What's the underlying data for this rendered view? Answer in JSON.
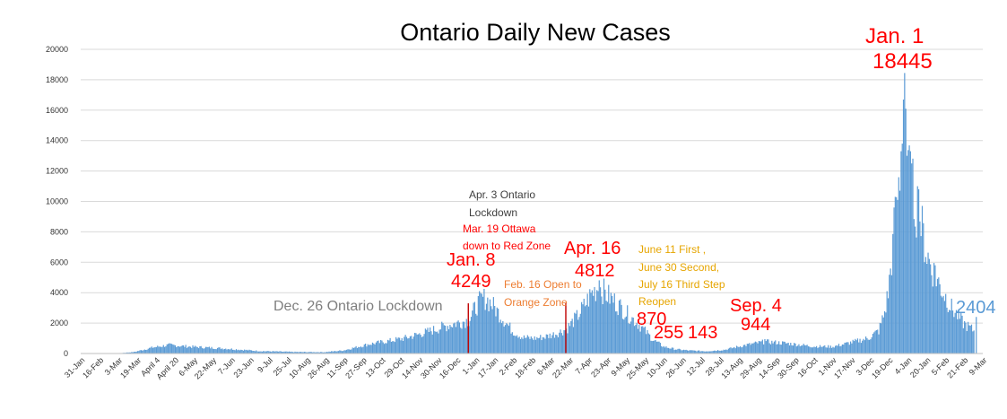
{
  "chart_data": {
    "type": "bar",
    "title": "Ontario Daily New Cases",
    "xlabel": "",
    "ylabel": "",
    "ylim": [
      0,
      20000
    ],
    "yticks": [
      0,
      2000,
      4000,
      6000,
      8000,
      10000,
      12000,
      14000,
      16000,
      18000,
      20000
    ],
    "grid": true,
    "legend": "none",
    "bar_color": "#5b9bd5",
    "start_date": "31-Jan",
    "x_tick_labels": [
      "31-Jan",
      "16-Feb",
      "3-Mar",
      "19-Mar",
      "April 4",
      "April 20",
      "6-May",
      "22-May",
      "7-Jun",
      "23-Jun",
      "9-Jul",
      "25-Jul",
      "10-Aug",
      "26-Aug",
      "11-Sep",
      "27-Sep",
      "13-Oct",
      "29-Oct",
      "14-Nov",
      "30-Nov",
      "16-Dec",
      "1-Jan",
      "17-Jan",
      "2-Feb",
      "18-Feb",
      "6-Mar",
      "22-Mar",
      "7-Apr",
      "23-Apr",
      "9-May",
      "25-May",
      "10-Jun",
      "26-Jun",
      "12-Jul",
      "28-Jul",
      "13-Aug",
      "29-Aug",
      "14-Sep",
      "30-Sep",
      "16-Oct",
      "1-Nov",
      "17-Nov",
      "3-Dec",
      "19-Dec",
      "4-Jan",
      "20-Jan",
      "5-Feb",
      "21-Feb",
      "9-Mar"
    ],
    "keyframes": [
      [
        "31-Jan",
        0
      ],
      [
        "29-Feb",
        0
      ],
      [
        "16-Mar",
        100
      ],
      [
        "1-Apr",
        400
      ],
      [
        "15-Apr",
        560
      ],
      [
        "1-May",
        460
      ],
      [
        "1-Jun",
        330
      ],
      [
        "1-Jul",
        160
      ],
      [
        "1-Aug",
        100
      ],
      [
        "25-Aug",
        90
      ],
      [
        "10-Sep",
        200
      ],
      [
        "1-Oct",
        600
      ],
      [
        "20-Oct",
        840
      ],
      [
        "1-Nov",
        1000
      ],
      [
        "20-Nov",
        1400
      ],
      [
        "10-Dec",
        1900
      ],
      [
        "26-Dec",
        2200
      ],
      [
        "2-Jan",
        3200
      ],
      [
        "8-Jan",
        3700
      ],
      [
        "14-Jan",
        3300
      ],
      [
        "21-Jan",
        2600
      ],
      [
        "1-Feb",
        1500
      ],
      [
        "10-Feb",
        1050
      ],
      [
        "20-Feb",
        1000
      ],
      [
        "1-Mar",
        1100
      ],
      [
        "10-Mar",
        1300
      ],
      [
        "19-Mar",
        1600
      ],
      [
        "28-Mar",
        2400
      ],
      [
        "3-Apr",
        3100
      ],
      [
        "10-Apr",
        4000
      ],
      [
        "16-Apr",
        4400
      ],
      [
        "22-Apr",
        3900
      ],
      [
        "1-May",
        3300
      ],
      [
        "10-May",
        2600
      ],
      [
        "20-May",
        1900
      ],
      [
        "1-Jun",
        900
      ],
      [
        "10-Jun",
        450
      ],
      [
        "20-Jun",
        280
      ],
      [
        "1-Jul",
        200
      ],
      [
        "16-Jul",
        150
      ],
      [
        "1-Aug",
        250
      ],
      [
        "15-Aug",
        500
      ],
      [
        "4-Sep",
        780
      ],
      [
        "20-Sep",
        690
      ],
      [
        "1-Oct",
        600
      ],
      [
        "15-Oct",
        470
      ],
      [
        "1-Nov",
        450
      ],
      [
        "15-Nov",
        700
      ],
      [
        "1-Dec",
        1000
      ],
      [
        "10-Dec",
        1500
      ],
      [
        "15-Dec",
        2700
      ],
      [
        "18-Dec",
        4000
      ],
      [
        "22-Dec",
        7000
      ],
      [
        "25-Dec",
        9000
      ],
      [
        "28-Dec",
        12000
      ],
      [
        "1-Jan",
        14000
      ],
      [
        "5-Jan",
        11500
      ],
      [
        "10-Jan",
        10000
      ],
      [
        "15-Jan",
        8500
      ],
      [
        "20-Jan",
        6500
      ],
      [
        "25-Jan",
        5500
      ],
      [
        "1-Feb",
        4300
      ],
      [
        "10-Feb",
        3000
      ],
      [
        "20-Feb",
        2000
      ],
      [
        "1-Mar",
        1500
      ]
    ],
    "spikes": [
      [
        "8-Jan",
        4249
      ],
      [
        "16-Apr",
        4812
      ],
      [
        "4-Sep",
        944
      ],
      [
        "23-Dec",
        9600
      ],
      [
        "24-Dec",
        10300
      ],
      [
        "26-Dec",
        10100
      ],
      [
        "29-Dec",
        13300
      ],
      [
        "30-Dec",
        13800
      ],
      [
        "31-Dec",
        16700
      ],
      [
        "1-Jan",
        18445
      ],
      [
        "2-Jan",
        16100
      ],
      [
        "3-Jan",
        13000
      ],
      [
        "6-Jan",
        13300
      ],
      [
        "12-Jan",
        11000
      ],
      [
        "13-Jan",
        10800
      ],
      [
        "27-Jan",
        5800
      ],
      [
        "3-Mar",
        2404
      ]
    ],
    "event_lines": [
      {
        "date": "26-Dec",
        "color": "#c00000"
      },
      {
        "date": "19-Mar",
        "color": "#c00000"
      }
    ],
    "annotations": [
      {
        "id": "ann-jan8-date",
        "text": "Jan. 8",
        "color": "#ff0000"
      },
      {
        "id": "ann-jan8-value",
        "text": "4249",
        "color": "#ff0000"
      },
      {
        "id": "ann-dec26",
        "text": "Dec. 26 Ontario Lockdown",
        "color": "#7f7f7f"
      },
      {
        "id": "ann-apr3-line1",
        "text": "Apr. 3 Ontario",
        "color": "#404040"
      },
      {
        "id": "ann-apr3-line2",
        "text": "Lockdown",
        "color": "#404040"
      },
      {
        "id": "ann-mar19-line1",
        "text": "Mar. 19 Ottawa",
        "color": "#ff0000"
      },
      {
        "id": "ann-mar19-line2",
        "text": "down to Red Zone",
        "color": "#ff0000"
      },
      {
        "id": "ann-feb16-line1",
        "text": "Feb. 16 Open to",
        "color": "#ed7d31"
      },
      {
        "id": "ann-feb16-line2",
        "text": "Orange Zone",
        "color": "#ed7d31"
      },
      {
        "id": "ann-apr16-date",
        "text": "Apr. 16",
        "color": "#ff0000"
      },
      {
        "id": "ann-apr16-value",
        "text": "4812",
        "color": "#ff0000"
      },
      {
        "id": "ann-reopen-line1",
        "text": "June 11 First ,",
        "color": "#e6a500"
      },
      {
        "id": "ann-reopen-line2",
        "text": "June 30 Second,",
        "color": "#e6a500"
      },
      {
        "id": "ann-reopen-line3",
        "text": "July 16 Third Step",
        "color": "#e6a500"
      },
      {
        "id": "ann-reopen-line4",
        "text": "Reopen",
        "color": "#e6a500"
      },
      {
        "id": "ann-870",
        "text": "870",
        "color": "#ff0000"
      },
      {
        "id": "ann-255",
        "text": "255",
        "color": "#ff0000"
      },
      {
        "id": "ann-143",
        "text": "143",
        "color": "#ff0000"
      },
      {
        "id": "ann-sep4-date",
        "text": "Sep. 4",
        "color": "#ff0000"
      },
      {
        "id": "ann-sep4-value",
        "text": "944",
        "color": "#ff0000"
      },
      {
        "id": "ann-jan1-date",
        "text": "Jan. 1",
        "color": "#ff0000"
      },
      {
        "id": "ann-jan1-value",
        "text": "18445",
        "color": "#ff0000"
      },
      {
        "id": "ann-latest",
        "text": "2404",
        "color": "#5b9bd5"
      }
    ]
  }
}
